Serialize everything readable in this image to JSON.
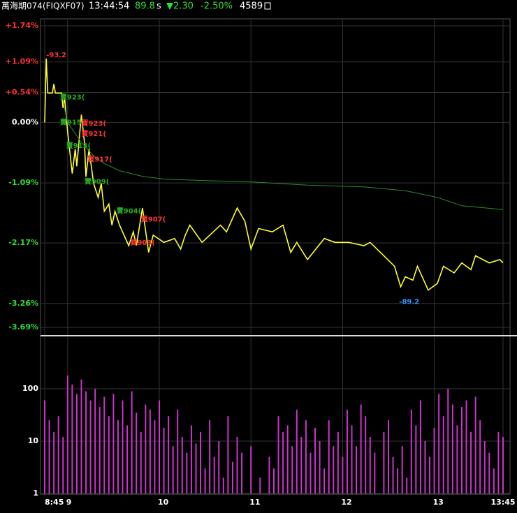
{
  "header": {
    "symbol": "萬海期074(FIQXF07)",
    "time": "13:44:54",
    "price": "89.8",
    "price_unit": "s",
    "change": "▼2.30",
    "pct_change": "-2.50%",
    "volume": "4589"
  },
  "chart_data": [
    {
      "type": "line",
      "xlim": [
        525,
        825
      ],
      "ylim": [
        -3.69,
        1.74
      ],
      "yticks": [
        {
          "value": 1.74,
          "label": "+1.74%"
        },
        {
          "value": 1.09,
          "label": "+1.09%"
        },
        {
          "value": 0.54,
          "label": "+0.54%"
        },
        {
          "value": 0,
          "label": "0.00%"
        },
        {
          "value": -1.09,
          "label": "-1.09%"
        },
        {
          "value": -2.17,
          "label": "-2.17%"
        },
        {
          "value": -3.26,
          "label": "-3.26%"
        },
        {
          "value": -3.69,
          "label": "-3.69%"
        }
      ],
      "grid": true,
      "series": [
        {
          "color": "#ffff33",
          "x": [
            525,
            526,
            527,
            530,
            531,
            532,
            536,
            537,
            538,
            540,
            541,
            543,
            545,
            546,
            549,
            551,
            552,
            554,
            557,
            560,
            562,
            564,
            567,
            569,
            571,
            574,
            580,
            583,
            585,
            589,
            593,
            596,
            603,
            610,
            614,
            617,
            620,
            628,
            633,
            640,
            644,
            651,
            656,
            660,
            665,
            674,
            681,
            686,
            690,
            697,
            708,
            715,
            724,
            734,
            738,
            747,
            754,
            758,
            761,
            766,
            769,
            776,
            782,
            786,
            793,
            798,
            804,
            807,
            816,
            823,
            825
          ],
          "values": [
            0,
            1.15,
            0.53,
            0.53,
            0.69,
            0.53,
            0.53,
            0.26,
            0.45,
            -0.17,
            -0.42,
            -0.92,
            -0.48,
            -0.79,
            0.14,
            -0.36,
            -0.98,
            -0.48,
            -1.1,
            -1.35,
            -1.1,
            -1.6,
            -1.47,
            -1.85,
            -1.6,
            -1.85,
            -2.22,
            -1.97,
            -2.22,
            -1.54,
            -2.34,
            -2.03,
            -2.16,
            -2.09,
            -2.28,
            -2.03,
            -1.85,
            -2.16,
            -2.03,
            -1.85,
            -1.97,
            -1.54,
            -1.78,
            -2.28,
            -1.91,
            -1.97,
            -1.85,
            -2.34,
            -2.16,
            -2.47,
            -2.09,
            -2.16,
            -2.16,
            -2.22,
            -2.16,
            -2.4,
            -2.59,
            -2.96,
            -2.78,
            -2.84,
            -2.59,
            -3.02,
            -2.9,
            -2.59,
            -2.71,
            -2.53,
            -2.65,
            -2.4,
            -2.53,
            -2.47,
            -2.53
          ]
        },
        {
          "color": "#2e8b2e",
          "x": [
            537,
            540,
            549,
            557,
            564,
            574,
            589,
            603,
            633,
            660,
            697,
            734,
            761,
            782,
            798,
            825
          ],
          "values": [
            0.38,
            0,
            -0.36,
            -0.6,
            -0.74,
            -0.87,
            -0.97,
            -1.02,
            -1.05,
            -1.07,
            -1.13,
            -1.16,
            -1.23,
            -1.35,
            -1.5,
            -1.57
          ]
        }
      ],
      "annotations": [
        {
          "text": "-93.2",
          "x": 526,
          "y": 1.21,
          "color": "#ff3333"
        },
        {
          "text": "-89.2",
          "x": 757,
          "y": -3.23,
          "color": "#3399ff"
        },
        {
          "text": "賣923(",
          "x": 535,
          "y": 0.45,
          "color": "#22aa22"
        },
        {
          "text": "賣915",
          "x": 535,
          "y": 0,
          "color": "#22aa22"
        },
        {
          "text": "賣913(",
          "x": 539,
          "y": -0.42,
          "color": "#22aa22"
        },
        {
          "text": "賣909(",
          "x": 551,
          "y": -1.07,
          "color": "#22aa22"
        },
        {
          "text": "賣904(",
          "x": 572,
          "y": -1.6,
          "color": "#22aa22"
        },
        {
          "text": "買923(",
          "x": 549,
          "y": -0.02,
          "color": "#ff3333"
        },
        {
          "text": "買921(",
          "x": 549,
          "y": -0.21,
          "color": "#ff3333"
        },
        {
          "text": "買917(",
          "x": 553,
          "y": -0.67,
          "color": "#ff3333"
        },
        {
          "text": "買907(",
          "x": 588,
          "y": -1.75,
          "color": "#ff3333"
        },
        {
          "text": "買903(",
          "x": 581,
          "y": -2.17,
          "color": "#ff3333"
        }
      ]
    },
    {
      "type": "bar",
      "log_scale": true,
      "color": "#cc33cc",
      "xlim": [
        525,
        825
      ],
      "ylim": [
        1,
        1000
      ],
      "yticks": [
        1,
        10,
        100
      ],
      "grid": true,
      "xticks": [
        {
          "value": 525,
          "label": "8:45"
        },
        {
          "value": 540,
          "label": "9"
        },
        {
          "value": 600,
          "label": "10"
        },
        {
          "value": 660,
          "label": "11"
        },
        {
          "value": 720,
          "label": "12"
        },
        {
          "value": 780,
          "label": "13"
        },
        {
          "value": 825,
          "label": "13:45"
        }
      ],
      "x": [
        525,
        528,
        531,
        534,
        537,
        540,
        543,
        546,
        549,
        552,
        555,
        558,
        561,
        564,
        567,
        570,
        573,
        576,
        579,
        582,
        585,
        588,
        591,
        594,
        597,
        600,
        603,
        606,
        609,
        612,
        615,
        618,
        621,
        624,
        627,
        630,
        633,
        636,
        639,
        642,
        645,
        648,
        651,
        654,
        657,
        660,
        663,
        666,
        669,
        672,
        675,
        678,
        681,
        684,
        687,
        690,
        693,
        696,
        699,
        702,
        705,
        708,
        711,
        714,
        717,
        720,
        723,
        726,
        729,
        732,
        735,
        738,
        741,
        744,
        747,
        750,
        753,
        756,
        759,
        762,
        765,
        768,
        771,
        774,
        777,
        780,
        783,
        786,
        789,
        792,
        795,
        798,
        801,
        804,
        807,
        810,
        813,
        816,
        819,
        822,
        825
      ],
      "values": [
        60,
        25,
        15,
        30,
        12,
        180,
        120,
        80,
        150,
        90,
        60,
        100,
        45,
        70,
        30,
        80,
        25,
        60,
        20,
        90,
        35,
        15,
        50,
        40,
        25,
        60,
        18,
        30,
        8,
        40,
        12,
        6,
        20,
        9,
        15,
        3,
        25,
        5,
        10,
        2,
        30,
        4,
        12,
        6,
        1,
        8,
        1,
        2,
        1,
        5,
        3,
        30,
        15,
        20,
        8,
        40,
        12,
        25,
        6,
        18,
        10,
        3,
        25,
        8,
        15,
        5,
        40,
        20,
        8,
        50,
        30,
        12,
        6,
        1,
        15,
        25,
        5,
        3,
        8,
        2,
        40,
        20,
        60,
        10,
        5,
        18,
        80,
        30,
        100,
        50,
        20,
        45,
        60,
        15,
        70,
        25,
        10,
        6,
        3,
        15,
        12
      ]
    }
  ]
}
